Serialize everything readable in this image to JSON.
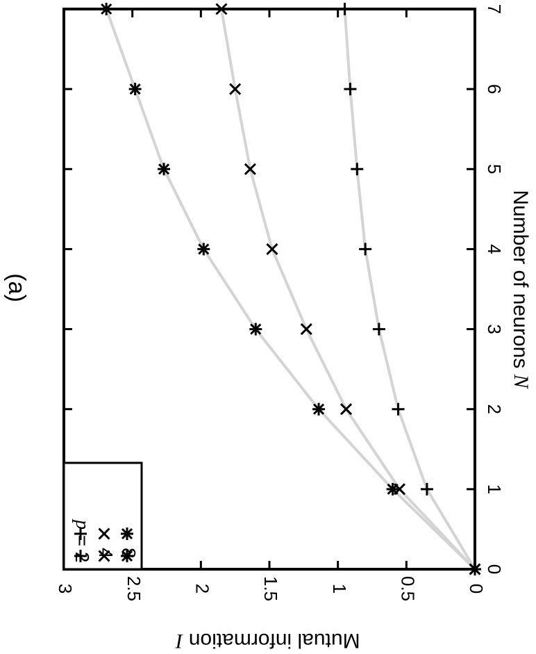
{
  "chart_data": {
    "type": "line",
    "title": "(a)",
    "xlabel": "Number of neurons",
    "xlabel_symbol": "N",
    "ylabel": "Mutual information",
    "ylabel_symbol": "I",
    "xlim": [
      0,
      7
    ],
    "ylim": [
      0,
      3
    ],
    "x_ticks": [
      "0",
      "1",
      "2",
      "3",
      "4",
      "5",
      "6",
      "7"
    ],
    "y_ticks": [
      "0",
      "0.5",
      "1",
      "1.5",
      "2",
      "2.5",
      "3"
    ],
    "rotation": "rotated 90 degrees clockwise",
    "grid": false,
    "legend_position": "bottom-left of rotated figure",
    "legend_var": "p",
    "x": [
      0,
      1,
      2,
      3,
      4,
      5,
      6,
      7
    ],
    "series": [
      {
        "name": "2",
        "label_prefix": "p = ",
        "marker": "plus",
        "values": [
          0,
          0.35,
          0.56,
          0.7,
          0.8,
          0.86,
          0.91,
          0.95
        ]
      },
      {
        "name": "4",
        "marker": "cross",
        "values": [
          0,
          0.55,
          0.94,
          1.23,
          1.48,
          1.64,
          1.75,
          1.85
        ]
      },
      {
        "name": "8",
        "marker": "star",
        "values": [
          0,
          0.6,
          1.14,
          1.6,
          1.98,
          2.27,
          2.48,
          2.69
        ]
      }
    ],
    "colors": {
      "line": "#d4d4d4",
      "marker": "#000000",
      "frame": "#000000"
    }
  }
}
